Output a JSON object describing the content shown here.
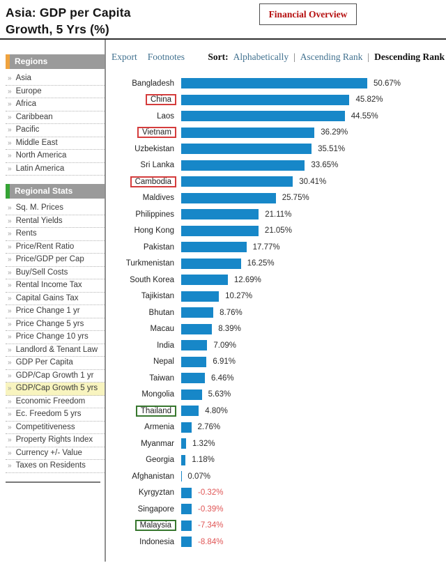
{
  "header": {
    "title_line1": "Asia: GDP per Capita",
    "title_line2": "Growth, 5 Yrs (%)",
    "overview_button": "Financial Overview"
  },
  "sidebar": {
    "chevron": "»",
    "active_item": "GDP/Cap Growth 5 yrs",
    "sections": [
      {
        "title": "Regions",
        "accent_color": "#efa33f",
        "items": [
          "Asia",
          "Europe",
          "Africa",
          "Caribbean",
          "Pacific",
          "Middle East",
          "North America",
          "Latin America"
        ]
      },
      {
        "title": "Regional Stats",
        "accent_color": "#35a435",
        "items": [
          "Sq. M. Prices",
          "Rental Yields",
          "Rents",
          "Price/Rent Ratio",
          "Price/GDP per Cap",
          "Buy/Sell Costs",
          "Rental Income Tax",
          "Capital Gains Tax",
          "Price Change 1 yr",
          "Price Change 5 yrs",
          "Price Change 10 yrs",
          "Landlord & Tenant Law",
          "GDP Per Capita",
          "GDP/Cap Growth 1 yr",
          "GDP/Cap Growth 5 yrs",
          "Economic Freedom",
          "Ec. Freedom 5 yrs",
          "Competitiveness",
          "Property Rights Index",
          "Currency +/- Value",
          "Taxes on Residents"
        ]
      }
    ]
  },
  "toolbar": {
    "export_label": "Export",
    "footnotes_label": "Footnotes",
    "sort_label": "Sort:",
    "separator": "|",
    "sort_options": [
      {
        "label": "Alphabetically",
        "active": false
      },
      {
        "label": "Ascending Rank",
        "active": false
      },
      {
        "label": "Descending Rank",
        "active": true
      }
    ]
  },
  "chart_data": {
    "type": "bar",
    "orientation": "horizontal",
    "title": "Asia: GDP per Capita Growth, 5 Yrs (%)",
    "value_suffix": "%",
    "xlim": [
      0,
      55
    ],
    "grid": false,
    "legend": false,
    "bar_color": "#1787c8",
    "positive_value_color": "#2b2b2b",
    "negative_value_color": "#e05555",
    "categories": [
      "Bangladesh",
      "China",
      "Laos",
      "Vietnam",
      "Uzbekistan",
      "Sri Lanka",
      "Cambodia",
      "Maldives",
      "Philippines",
      "Hong Kong",
      "Pakistan",
      "Turkmenistan",
      "South Korea",
      "Tajikistan",
      "Bhutan",
      "Macau",
      "India",
      "Nepal",
      "Taiwan",
      "Mongolia",
      "Thailand",
      "Armenia",
      "Myanmar",
      "Georgia",
      "Afghanistan",
      "Kyrgyztan",
      "Singapore",
      "Malaysia",
      "Indonesia"
    ],
    "values": [
      50.67,
      45.82,
      44.55,
      36.29,
      35.51,
      33.65,
      30.41,
      25.75,
      21.11,
      21.05,
      17.77,
      16.25,
      12.69,
      10.27,
      8.76,
      8.39,
      7.09,
      6.91,
      6.46,
      5.63,
      4.8,
      2.76,
      1.32,
      1.18,
      0.07,
      -0.32,
      -0.39,
      -7.34,
      -8.84
    ],
    "highlights": {
      "red_outline": [
        "China",
        "Vietnam",
        "Cambodia"
      ],
      "green_outline": [
        "Thailand",
        "Malaysia"
      ],
      "red_outline_color": "#d43c3c",
      "green_outline_color": "#37772e"
    }
  }
}
